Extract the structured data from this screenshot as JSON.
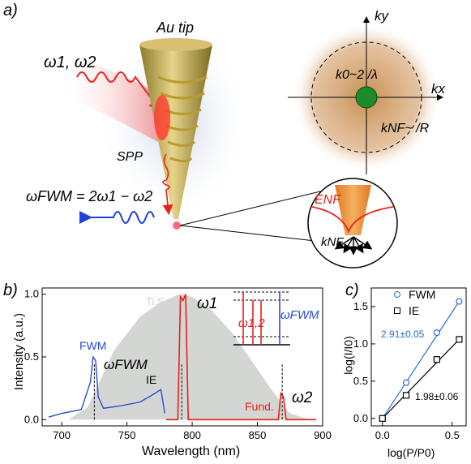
{
  "panels": {
    "a": "a)",
    "b": "b)",
    "c": "c)"
  },
  "panel_a": {
    "tip_label": "Au tip",
    "input_label": "ω1, ω2",
    "spp_label": "SPP",
    "fwm_eq": "ωFWM = 2ω1 − ω2",
    "ky": "ky",
    "kx": "kx",
    "k0": "k0~2 /λ",
    "knf": "kNF~ /R",
    "enf": "ENF",
    "knf_inset": "kNF",
    "colors": {
      "halo": "#c48a4a",
      "green": "#1e8a2a",
      "red": "#e8201a",
      "blue": "#2040e0"
    }
  },
  "panel_b": {
    "ylabel": "Intensity (a.u.)",
    "xlabel": "Wavelength (nm)",
    "xticks": [
      "700",
      "750",
      "800",
      "850",
      "900"
    ],
    "yticks": [
      "0.0",
      "0.5",
      "1.0"
    ],
    "tis_label": "Ti:S",
    "fwm_label": "FWM",
    "omega_fwm_label": "ωFWM",
    "ie_label": "IE",
    "omega1_label": "ω1",
    "omega2_label": "ω2",
    "fund_label": "Fund.",
    "inset_w12": "ω1,2",
    "inset_wfwm": "ωFWM",
    "colors": {
      "tis": "#d4d6d4",
      "fwm": "#2a4bd7",
      "fund": "#e8201a"
    }
  },
  "panel_c": {
    "ylabel": "log(I/I0)",
    "xlabel": "log(P/P0)",
    "xticks": [
      "0.0",
      "0.5"
    ],
    "yticks": [
      "0.0",
      "0.5",
      "1.0",
      "1.5"
    ],
    "legend": [
      "FWM",
      "IE"
    ],
    "fwm_slope": "2.91±0.05",
    "ie_slope": "1.98±0.06",
    "colors": {
      "fwm": "#2a6bd7",
      "ie": "#000000"
    }
  },
  "chart_data": [
    {
      "type": "line",
      "xlabel": "Wavelength (nm)",
      "ylabel": "Intensity (a.u.)",
      "xlim": [
        685,
        900
      ],
      "ylim": [
        -0.05,
        1.05
      ],
      "series": [
        {
          "name": "Ti:S",
          "x": [
            705,
            720,
            740,
            760,
            775,
            790,
            800,
            815,
            830,
            845,
            860,
            875,
            890
          ],
          "y": [
            0.0,
            0.1,
            0.55,
            0.82,
            0.93,
            1.0,
            0.98,
            0.87,
            0.7,
            0.48,
            0.25,
            0.05,
            0.0
          ]
        },
        {
          "name": "FWM",
          "x": [
            690,
            700,
            715,
            722,
            724,
            726,
            728,
            732,
            745,
            760,
            770,
            776,
            779
          ],
          "y": [
            0.02,
            0.05,
            0.08,
            0.3,
            0.5,
            0.47,
            0.18,
            0.09,
            0.11,
            0.14,
            0.2,
            0.24,
            0.05
          ]
        },
        {
          "name": "Fund.",
          "x": [
            780,
            789,
            791,
            793,
            795,
            797,
            860,
            866,
            868,
            870,
            872,
            895
          ],
          "y": [
            0.0,
            0.0,
            0.98,
            0.95,
            1.0,
            0.0,
            0.0,
            0.0,
            0.21,
            0.18,
            0.0,
            0.0
          ]
        }
      ]
    },
    {
      "type": "scatter",
      "xlabel": "log(P/P0)",
      "ylabel": "log(I/I0)",
      "xlim": [
        -0.08,
        0.6
      ],
      "ylim": [
        -0.1,
        1.75
      ],
      "series": [
        {
          "name": "FWM",
          "x": [
            0.0,
            0.17,
            0.39,
            0.55
          ],
          "y": [
            0.0,
            0.48,
            1.15,
            1.57
          ]
        },
        {
          "name": "IE",
          "x": [
            0.0,
            0.17,
            0.39,
            0.55
          ],
          "y": [
            0.0,
            0.31,
            0.79,
            1.06
          ]
        }
      ]
    }
  ]
}
